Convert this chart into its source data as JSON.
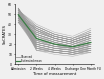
{
  "title": "",
  "xlabel": "Time of measurement",
  "ylabel": "SoCRATES",
  "x_labels": [
    "Admission",
    "2 Weeks",
    "4 Weeks",
    "Discharge",
    "One Month FU"
  ],
  "x_values": [
    0,
    1,
    2,
    3,
    4
  ],
  "ylim": [
    0,
    60
  ],
  "yticks": [
    0,
    10,
    20,
    30,
    40,
    50,
    60
  ],
  "background_color": "#f0f0f0",
  "line_color": "#999999",
  "mean_color": "#3a7d44",
  "mean_lw": 0.9,
  "ind_lw": 0.35,
  "ind_alpha": 0.75,
  "trajectories": [
    [
      56,
      30,
      22,
      18,
      20
    ],
    [
      54,
      16,
      14,
      12,
      14
    ],
    [
      52,
      28,
      20,
      16,
      18
    ],
    [
      50,
      34,
      26,
      22,
      28
    ],
    [
      48,
      22,
      18,
      14,
      16
    ],
    [
      46,
      30,
      24,
      20,
      24
    ],
    [
      44,
      18,
      14,
      12,
      14
    ],
    [
      56,
      32,
      26,
      22,
      26
    ],
    [
      54,
      20,
      16,
      14,
      16
    ],
    [
      52,
      36,
      28,
      24,
      30
    ],
    [
      50,
      24,
      20,
      16,
      20
    ],
    [
      48,
      14,
      12,
      10,
      12
    ],
    [
      46,
      28,
      22,
      18,
      22
    ],
    [
      44,
      34,
      28,
      24,
      30
    ],
    [
      42,
      16,
      14,
      12,
      16
    ],
    [
      56,
      26,
      20,
      16,
      20
    ],
    [
      54,
      38,
      30,
      26,
      32
    ],
    [
      52,
      20,
      16,
      14,
      18
    ],
    [
      50,
      32,
      26,
      22,
      28
    ],
    [
      48,
      18,
      14,
      12,
      14
    ],
    [
      46,
      36,
      28,
      24,
      30
    ],
    [
      44,
      22,
      18,
      16,
      20
    ],
    [
      42,
      30,
      24,
      20,
      26
    ],
    [
      56,
      14,
      12,
      10,
      12
    ],
    [
      54,
      34,
      26,
      22,
      28
    ],
    [
      52,
      24,
      18,
      16,
      20
    ],
    [
      50,
      38,
      30,
      26,
      32
    ],
    [
      48,
      20,
      16,
      14,
      18
    ],
    [
      46,
      28,
      22,
      18,
      24
    ],
    [
      44,
      16,
      12,
      10,
      14
    ],
    [
      42,
      32,
      26,
      22,
      28
    ],
    [
      56,
      22,
      18,
      16,
      20
    ],
    [
      54,
      36,
      28,
      24,
      30
    ],
    [
      52,
      18,
      14,
      12,
      16
    ],
    [
      50,
      30,
      24,
      20,
      26
    ],
    [
      48,
      24,
      20,
      18,
      22
    ],
    [
      46,
      14,
      10,
      8,
      12
    ],
    [
      44,
      34,
      28,
      24,
      30
    ],
    [
      42,
      20,
      16,
      14,
      18
    ],
    [
      56,
      26,
      20,
      18,
      22
    ],
    [
      54,
      38,
      30,
      26,
      34
    ],
    [
      52,
      16,
      12,
      10,
      14
    ],
    [
      50,
      28,
      22,
      18,
      24
    ],
    [
      48,
      36,
      28,
      24,
      32
    ],
    [
      46,
      20,
      16,
      14,
      18
    ],
    [
      44,
      32,
      26,
      22,
      28
    ],
    [
      42,
      18,
      14,
      12,
      16
    ],
    [
      56,
      24,
      18,
      16,
      20
    ],
    [
      54,
      40,
      32,
      28,
      36
    ],
    [
      52,
      22,
      18,
      16,
      20
    ],
    [
      50,
      34,
      26,
      22,
      28
    ],
    [
      48,
      16,
      12,
      10,
      14
    ],
    [
      46,
      30,
      24,
      20,
      26
    ],
    [
      44,
      20,
      16,
      14,
      18
    ],
    [
      42,
      38,
      30,
      26,
      34
    ],
    [
      56,
      18,
      14,
      12,
      16
    ],
    [
      54,
      28,
      22,
      18,
      24
    ],
    [
      52,
      34,
      26,
      22,
      28
    ],
    [
      50,
      16,
      12,
      10,
      14
    ],
    [
      48,
      30,
      24,
      20,
      26
    ],
    [
      46,
      22,
      18,
      16,
      20
    ],
    [
      44,
      36,
      28,
      24,
      30
    ],
    [
      42,
      24,
      20,
      18,
      22
    ]
  ],
  "mean_trajectory": [
    49.5,
    25.8,
    20.2,
    17.5,
    21.8
  ],
  "legend_labels": [
    "Observed",
    "Estimated mean"
  ],
  "legend_colors": [
    "#999999",
    "#3a7d44"
  ]
}
